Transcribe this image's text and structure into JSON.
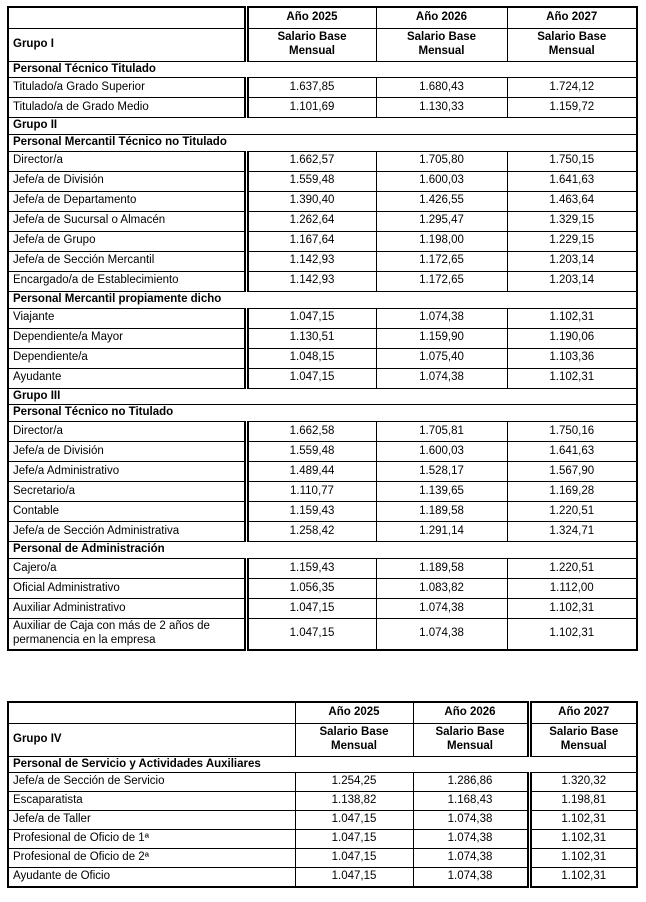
{
  "page": {
    "background": "#ffffff",
    "text_color": "#000000",
    "border_color": "#000000"
  },
  "tables": [
    {
      "group_label": "Grupo I",
      "year_headers": [
        "Año 2025",
        "Año 2026",
        "Año 2027"
      ],
      "sub_header": "Salario Base\nMensual",
      "rows": [
        {
          "type": "section",
          "label": "Personal Técnico Titulado"
        },
        {
          "type": "data",
          "label": "Titulado/a Grado Superior",
          "values": [
            "1.637,85",
            "1.680,43",
            "1.724,12"
          ]
        },
        {
          "type": "data",
          "label": "Titulado/a de Grado Medio",
          "values": [
            "1.101,69",
            "1.130,33",
            "1.159,72"
          ]
        },
        {
          "type": "section",
          "label": "Grupo II"
        },
        {
          "type": "section",
          "label": "Personal Mercantil Técnico no Titulado"
        },
        {
          "type": "data",
          "label": "Director/a",
          "values": [
            "1.662,57",
            "1.705,80",
            "1.750,15"
          ]
        },
        {
          "type": "data",
          "label": "Jefe/a de División",
          "values": [
            "1.559,48",
            "1.600,03",
            "1.641,63"
          ]
        },
        {
          "type": "data",
          "label": "Jefe/a de Departamento",
          "values": [
            "1.390,40",
            "1.426,55",
            "1.463,64"
          ]
        },
        {
          "type": "data",
          "label": "Jefe/a de Sucursal o Almacén",
          "values": [
            "1.262,64",
            "1.295,47",
            "1.329,15"
          ]
        },
        {
          "type": "data",
          "label": "Jefe/a de Grupo",
          "values": [
            "1.167,64",
            "1.198,00",
            "1.229,15"
          ]
        },
        {
          "type": "data",
          "label": "Jefe/a de Sección Mercantil",
          "values": [
            "1.142,93",
            "1.172,65",
            "1.203,14"
          ]
        },
        {
          "type": "data",
          "label": "Encargado/a de Establecimiento",
          "values": [
            "1.142,93",
            "1.172,65",
            "1.203,14"
          ]
        },
        {
          "type": "section",
          "label": "Personal Mercantil propiamente dicho"
        },
        {
          "type": "data",
          "label": "Viajante",
          "values": [
            "1.047,15",
            "1.074,38",
            "1.102,31"
          ]
        },
        {
          "type": "data",
          "label": "Dependiente/a Mayor",
          "values": [
            "1.130,51",
            "1.159,90",
            "1.190,06"
          ]
        },
        {
          "type": "data",
          "label": "Dependiente/a",
          "values": [
            "1.048,15",
            "1.075,40",
            "1.103,36"
          ]
        },
        {
          "type": "data",
          "label": "Ayudante",
          "values": [
            "1.047,15",
            "1.074,38",
            "1.102,31"
          ]
        },
        {
          "type": "section",
          "label": "Grupo III"
        },
        {
          "type": "section",
          "label": "Personal Técnico no Titulado"
        },
        {
          "type": "data",
          "label": "Director/a",
          "values": [
            "1.662,58",
            "1.705,81",
            "1.750,16"
          ]
        },
        {
          "type": "data",
          "label": "Jefe/a de División",
          "values": [
            "1.559,48",
            "1.600,03",
            "1.641,63"
          ]
        },
        {
          "type": "data",
          "label": "Jefe/a Administrativo",
          "values": [
            "1.489,44",
            "1.528,17",
            "1.567,90"
          ]
        },
        {
          "type": "data",
          "label": "Secretario/a",
          "values": [
            "1.110,77",
            "1.139,65",
            "1.169,28"
          ]
        },
        {
          "type": "data",
          "label": "Contable",
          "values": [
            "1.159,43",
            "1.189,58",
            "1.220,51"
          ]
        },
        {
          "type": "data",
          "label": "Jefe/a de Sección Administrativa",
          "values": [
            "1.258,42",
            "1.291,14",
            "1.324,71"
          ]
        },
        {
          "type": "section",
          "label": "Personal de Administración"
        },
        {
          "type": "data",
          "label": "Cajero/a",
          "values": [
            "1.159,43",
            "1.189,58",
            "1.220,51"
          ]
        },
        {
          "type": "data",
          "label": "Oficial Administrativo",
          "values": [
            "1.056,35",
            "1.083,82",
            "1.112,00"
          ]
        },
        {
          "type": "data",
          "label": "Auxiliar Administrativo",
          "values": [
            "1.047,15",
            "1.074,38",
            "1.102,31"
          ]
        },
        {
          "type": "data",
          "label": "Auxiliar de Caja con más de 2 años de permanencia en la empresa",
          "values": [
            "1.047,15",
            "1.074,38",
            "1.102,31"
          ]
        }
      ]
    },
    {
      "group_label": "Grupo IV",
      "year_headers": [
        "Año 2025",
        "Año 2026",
        "Año 2027"
      ],
      "sub_header": "Salario Base\nMensual",
      "rows": [
        {
          "type": "section",
          "label": "Personal de Servicio y Actividades Auxiliares"
        },
        {
          "type": "data",
          "label": "Jefe/a de Sección de Servicio",
          "values": [
            "1.254,25",
            "1.286,86",
            "1.320,32"
          ]
        },
        {
          "type": "data",
          "label": "Escaparatista",
          "values": [
            "1.138,82",
            "1.168,43",
            "1.198,81"
          ]
        },
        {
          "type": "data",
          "label": "Jefe/a de Taller",
          "values": [
            "1.047,15",
            "1.074,38",
            "1.102,31"
          ]
        },
        {
          "type": "data",
          "label": "Profesional de Oficio de 1ª",
          "values": [
            "1.047,15",
            "1.074,38",
            "1.102,31"
          ]
        },
        {
          "type": "data",
          "label": "Profesional de Oficio de 2ª",
          "values": [
            "1.047,15",
            "1.074,38",
            "1.102,31"
          ]
        },
        {
          "type": "data",
          "label": "Ayudante de Oficio",
          "values": [
            "1.047,15",
            "1.074,38",
            "1.102,31"
          ]
        }
      ]
    }
  ]
}
